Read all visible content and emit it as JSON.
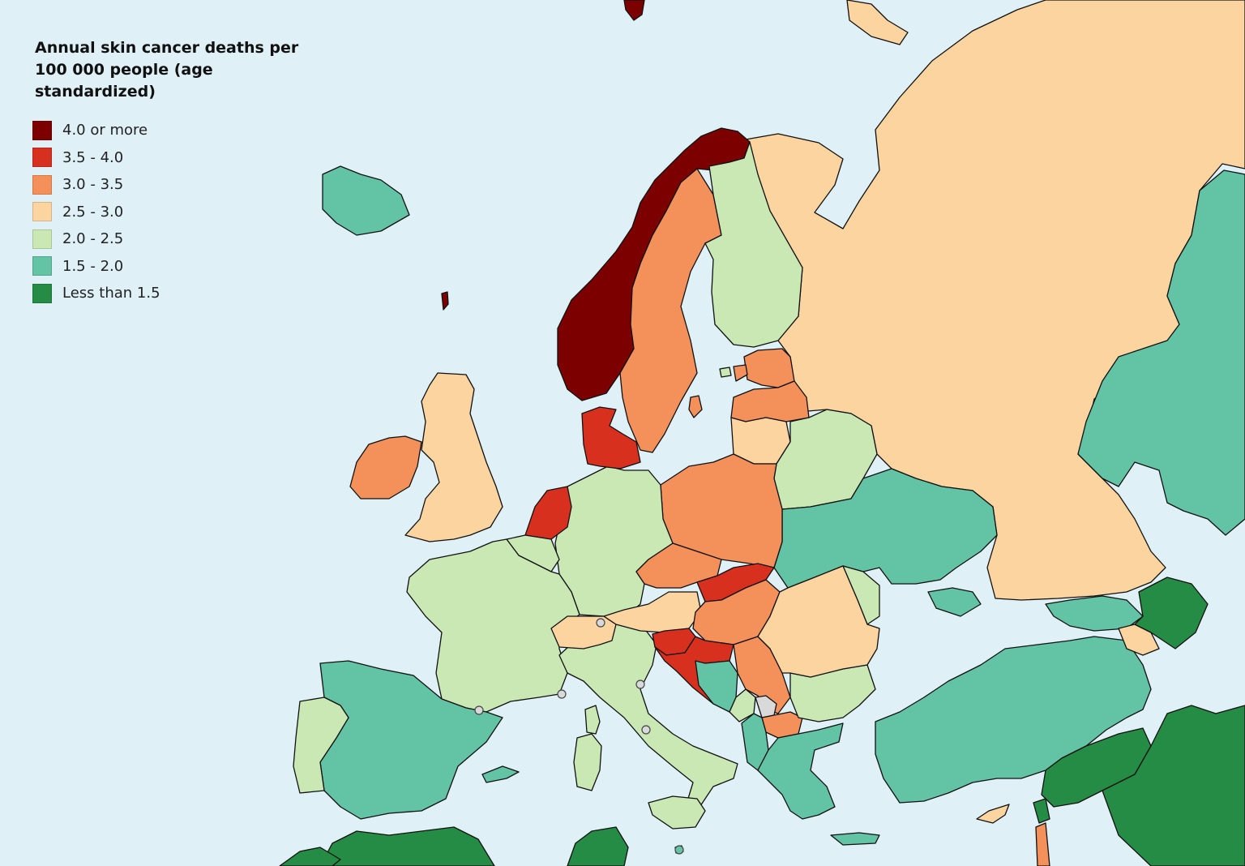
{
  "legend": {
    "title": "Annual skin cancer deaths per 100 000 people (age standardized)",
    "items": [
      {
        "label": "4.0 or more",
        "color": "#7d0000"
      },
      {
        "label": "3.5 - 4.0",
        "color": "#d7301f"
      },
      {
        "label": "3.0 - 3.5",
        "color": "#f4905a"
      },
      {
        "label": "2.5 - 3.0",
        "color": "#fcd49f"
      },
      {
        "label": "2.0 - 2.5",
        "color": "#c9e8b4"
      },
      {
        "label": "1.5 - 2.0",
        "color": "#62c3a5"
      },
      {
        "label": "Less than 1.5",
        "color": "#248c45"
      }
    ]
  },
  "colors": {
    "sea": "#dff0f7",
    "border": "#111111",
    "no_data": "#d9d9d9"
  },
  "regions": [
    {
      "name": "Russia",
      "bin": 3
    },
    {
      "name": "Norway",
      "bin": 0
    },
    {
      "name": "Sweden",
      "bin": 2
    },
    {
      "name": "Finland",
      "bin": 4
    },
    {
      "name": "Estonia",
      "bin": 2
    },
    {
      "name": "Latvia",
      "bin": 2
    },
    {
      "name": "Lithuania",
      "bin": 3
    },
    {
      "name": "Belarus",
      "bin": 4
    },
    {
      "name": "Ukraine",
      "bin": 5
    },
    {
      "name": "Moldova",
      "bin": 4
    },
    {
      "name": "Poland",
      "bin": 2
    },
    {
      "name": "Germany",
      "bin": 4
    },
    {
      "name": "Denmark",
      "bin": 1
    },
    {
      "name": "Netherlands",
      "bin": 1
    },
    {
      "name": "Belgium",
      "bin": 4
    },
    {
      "name": "France",
      "bin": 4
    },
    {
      "name": "United Kingdom",
      "bin": 3
    },
    {
      "name": "Ireland",
      "bin": 2
    },
    {
      "name": "Iceland",
      "bin": 5
    },
    {
      "name": "Spain",
      "bin": 5
    },
    {
      "name": "Portugal",
      "bin": 4
    },
    {
      "name": "Italy",
      "bin": 4
    },
    {
      "name": "Switzerland",
      "bin": 3
    },
    {
      "name": "Austria",
      "bin": 3
    },
    {
      "name": "Czechia",
      "bin": 2
    },
    {
      "name": "Slovakia",
      "bin": 1
    },
    {
      "name": "Hungary",
      "bin": 2
    },
    {
      "name": "Slovenia",
      "bin": 1
    },
    {
      "name": "Croatia",
      "bin": 1
    },
    {
      "name": "Bosnia and Herzegovina",
      "bin": 5
    },
    {
      "name": "Serbia",
      "bin": 2
    },
    {
      "name": "Montenegro",
      "bin": 4
    },
    {
      "name": "Kosovo",
      "bin": 7
    },
    {
      "name": "North Macedonia",
      "bin": 2
    },
    {
      "name": "Albania",
      "bin": 5
    },
    {
      "name": "Greece",
      "bin": 5
    },
    {
      "name": "Bulgaria",
      "bin": 4
    },
    {
      "name": "Romania",
      "bin": 3
    },
    {
      "name": "Turkey",
      "bin": 5
    },
    {
      "name": "Georgia",
      "bin": 5
    },
    {
      "name": "Armenia",
      "bin": 3
    },
    {
      "name": "Azerbaijan",
      "bin": 6
    },
    {
      "name": "Kazakhstan",
      "bin": 5
    },
    {
      "name": "Cyprus",
      "bin": 3
    },
    {
      "name": "Syria",
      "bin": 6
    },
    {
      "name": "Iraq",
      "bin": 6
    },
    {
      "name": "Lebanon",
      "bin": 6
    },
    {
      "name": "Israel",
      "bin": 2
    },
    {
      "name": "Algeria",
      "bin": 6
    },
    {
      "name": "Tunisia",
      "bin": 6
    },
    {
      "name": "Morocco",
      "bin": 6
    },
    {
      "name": "Sardinia",
      "bin": 4
    },
    {
      "name": "Corsica",
      "bin": 4
    },
    {
      "name": "Sicily",
      "bin": 4
    },
    {
      "name": "Malta",
      "bin": 5
    },
    {
      "name": "Crete",
      "bin": 5
    },
    {
      "name": "Gotland",
      "bin": 2
    },
    {
      "name": "Saaremaa",
      "bin": 2
    },
    {
      "name": "Balearic Islands",
      "bin": 5
    },
    {
      "name": "Crimea",
      "bin": 5
    },
    {
      "name": "Novaya Zemlya",
      "bin": 3
    },
    {
      "name": "Svalbard",
      "bin": 0
    },
    {
      "name": "Faroe Islands",
      "bin": 0
    },
    {
      "name": "Aland",
      "bin": 4
    }
  ]
}
